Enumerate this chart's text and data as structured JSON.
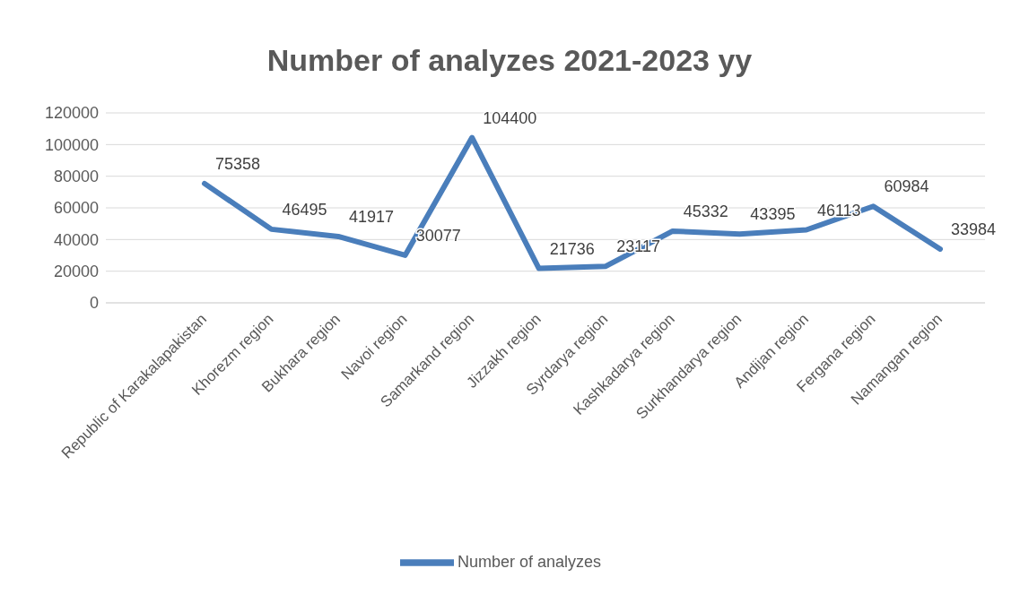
{
  "chart_data": {
    "type": "line",
    "title": "Number of analyzes 2021-2023 yy",
    "categories": [
      "Republic of Karakalapakistan",
      "Khorezm region",
      "Bukhara region",
      "Navoi region",
      "Samarkand region",
      "Jizzakh region",
      "Syrdarya region",
      "Kashkadarya region",
      "Surkhandarya region",
      "Andijan region",
      "Fergana region",
      "Namangan region"
    ],
    "series": [
      {
        "name": "Number of analyzes",
        "color": "#4a7ebb",
        "values": [
          75358,
          46495,
          41917,
          30077,
          104400,
          21736,
          23117,
          45332,
          43395,
          46113,
          60984,
          33984
        ]
      }
    ],
    "ylim": [
      0,
      120000
    ],
    "yticks": [
      0,
      20000,
      40000,
      60000,
      80000,
      100000,
      120000
    ],
    "grid": "y",
    "legend": "bottom",
    "data_labels": true,
    "marker": "none",
    "line_style": "solid"
  }
}
